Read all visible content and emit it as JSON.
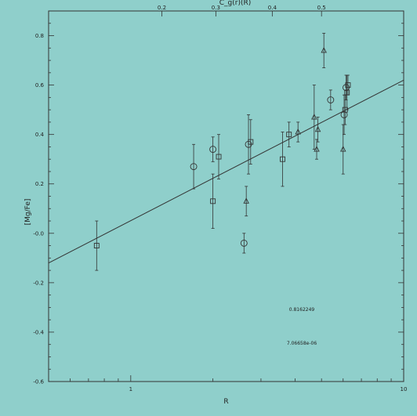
{
  "chart_data": {
    "type": "scatter",
    "title": "",
    "xlabel": "R",
    "ylabel": "[Mg/Fe]",
    "top_axis_label": "C_g(r)(R)",
    "x_scale": "log",
    "xlim": [
      0.5,
      10
    ],
    "ylim": [
      -0.6,
      0.9
    ],
    "x_ticks": [
      1,
      10
    ],
    "x_tick_labels": [
      "1",
      "10"
    ],
    "y_ticks": [
      -0.6,
      -0.4,
      -0.2,
      0.0,
      0.2,
      0.4,
      0.6,
      0.8
    ],
    "y_tick_labels": [
      "-0.6",
      "-0.4",
      "-0.2",
      "-0.0",
      "0.2",
      "0.4",
      "0.6",
      "0.8"
    ],
    "top_ticks": [
      0.2,
      0.3,
      0.4,
      0.5
    ],
    "top_tick_labels": [
      "0.2",
      "0.3",
      "0.4",
      "0.5"
    ],
    "top_tick_x": [
      1.3,
      2.05,
      3.3,
      5.0
    ],
    "grid": false,
    "points": [
      {
        "x": 0.75,
        "y": -0.05,
        "err": 0.1,
        "marker": "square"
      },
      {
        "x": 1.7,
        "y": 0.27,
        "err": 0.09,
        "marker": "circle"
      },
      {
        "x": 2.0,
        "y": 0.34,
        "err": 0.05,
        "marker": "circle"
      },
      {
        "x": 2.0,
        "y": 0.13,
        "err": 0.11,
        "marker": "square"
      },
      {
        "x": 2.1,
        "y": 0.31,
        "err": 0.09,
        "marker": "square"
      },
      {
        "x": 2.6,
        "y": -0.04,
        "err": 0.04,
        "marker": "circle"
      },
      {
        "x": 2.65,
        "y": 0.13,
        "err": 0.06,
        "marker": "triangle"
      },
      {
        "x": 2.7,
        "y": 0.36,
        "err": 0.12,
        "marker": "circle"
      },
      {
        "x": 2.75,
        "y": 0.37,
        "err": 0.09,
        "marker": "square"
      },
      {
        "x": 3.6,
        "y": 0.3,
        "err": 0.11,
        "marker": "square"
      },
      {
        "x": 3.8,
        "y": 0.4,
        "err": 0.05,
        "marker": "square"
      },
      {
        "x": 4.1,
        "y": 0.41,
        "err": 0.04,
        "marker": "triangle"
      },
      {
        "x": 4.7,
        "y": 0.47,
        "err": 0.13,
        "marker": "triangle"
      },
      {
        "x": 4.8,
        "y": 0.34,
        "err": 0.04,
        "marker": "triangle"
      },
      {
        "x": 4.85,
        "y": 0.42,
        "err": 0.05,
        "marker": "triangle"
      },
      {
        "x": 5.1,
        "y": 0.74,
        "err": 0.07,
        "marker": "triangle"
      },
      {
        "x": 5.4,
        "y": 0.54,
        "err": 0.04,
        "marker": "circle"
      },
      {
        "x": 6.0,
        "y": 0.34,
        "err": 0.1,
        "marker": "triangle"
      },
      {
        "x": 6.05,
        "y": 0.48,
        "err": 0.08,
        "marker": "circle"
      },
      {
        "x": 6.1,
        "y": 0.5,
        "err": 0.06,
        "marker": "square"
      },
      {
        "x": 6.15,
        "y": 0.59,
        "err": 0.05,
        "marker": "circle"
      },
      {
        "x": 6.2,
        "y": 0.57,
        "err": 0.07,
        "marker": "square"
      },
      {
        "x": 6.25,
        "y": 0.6,
        "err": 0.04,
        "marker": "square"
      }
    ],
    "fit_line": {
      "x": [
        0.5,
        10
      ],
      "y": [
        -0.12,
        0.62
      ]
    },
    "annotations": [
      "0.8162249",
      "7.06658e-06"
    ]
  }
}
